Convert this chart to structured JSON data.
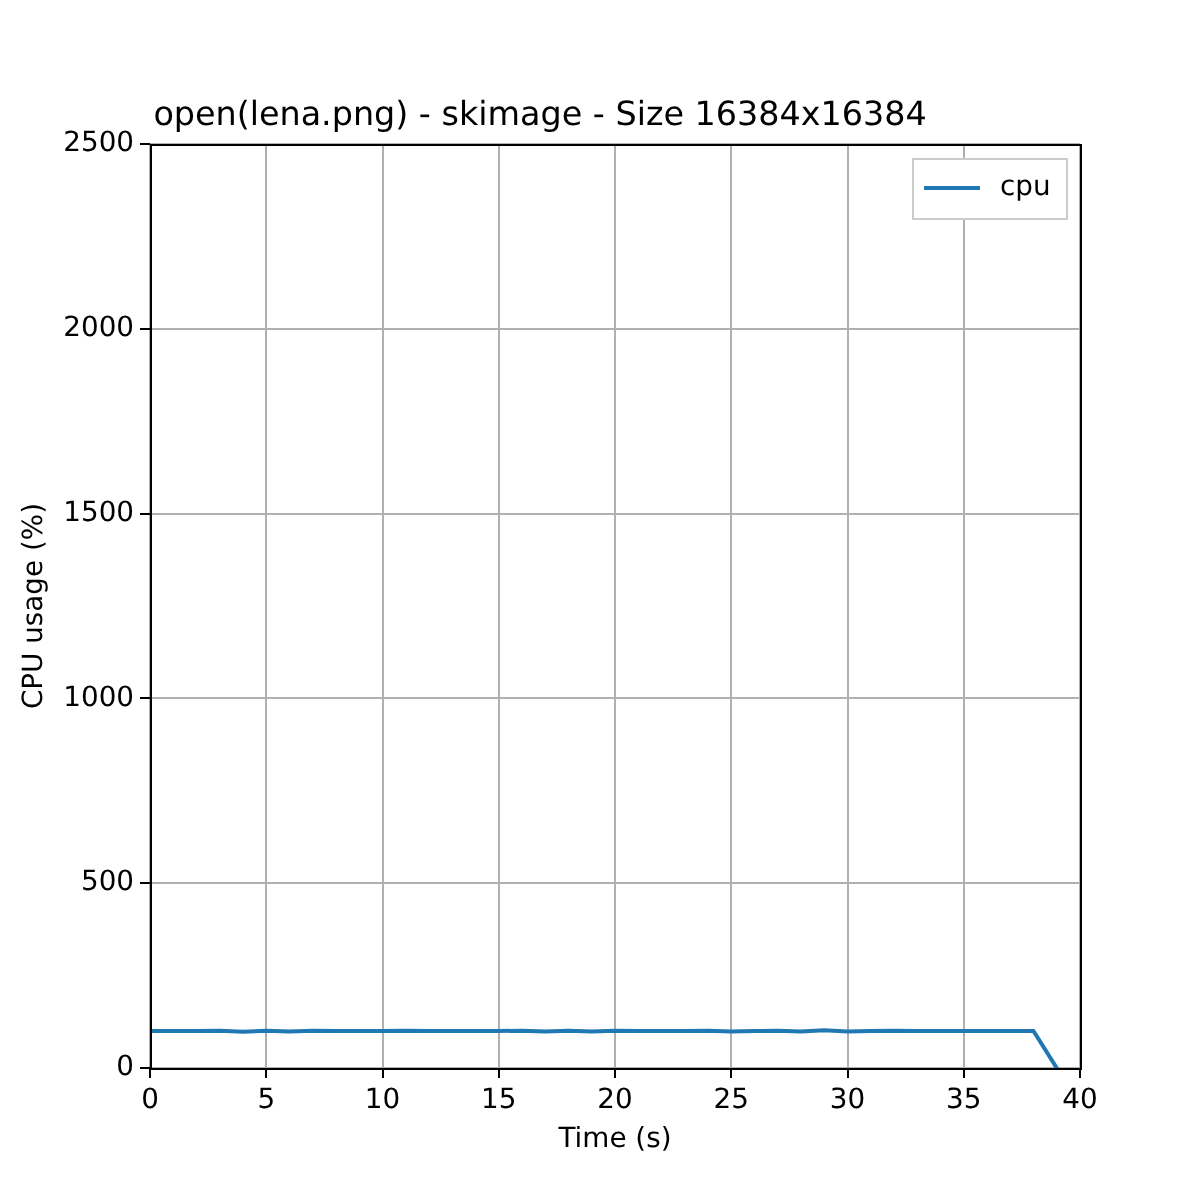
{
  "chart_data": {
    "type": "line",
    "title": "open(lena.png) - skimage - Size 16384x16384",
    "xlabel": "Time (s)",
    "ylabel": "CPU usage (%)",
    "x": [
      0,
      1,
      2,
      3,
      4,
      5,
      6,
      7,
      8,
      9,
      10,
      11,
      12,
      13,
      14,
      15,
      16,
      17,
      18,
      19,
      20,
      21,
      22,
      23,
      24,
      25,
      26,
      27,
      28,
      29,
      30,
      31,
      32,
      33,
      34,
      35,
      36,
      37,
      38,
      39
    ],
    "series": [
      {
        "name": "cpu",
        "color": "#1f77b4",
        "values": [
          100,
          100,
          100,
          101,
          98,
          101,
          99,
          101,
          100,
          100,
          100,
          101,
          100,
          100,
          100,
          100,
          101,
          99,
          101,
          99,
          101,
          100,
          100,
          100,
          101,
          99,
          100,
          101,
          99,
          102,
          99,
          100,
          101,
          100,
          100,
          100,
          100,
          100,
          100,
          0
        ]
      }
    ],
    "xlim": [
      0,
      40
    ],
    "ylim": [
      0,
      2500
    ],
    "xticks": [
      0,
      5,
      10,
      15,
      20,
      25,
      30,
      35,
      40
    ],
    "yticks": [
      0,
      500,
      1000,
      1500,
      2000,
      2500
    ],
    "grid": true,
    "legend": "top right",
    "marker": "none",
    "line_style": "solid"
  }
}
